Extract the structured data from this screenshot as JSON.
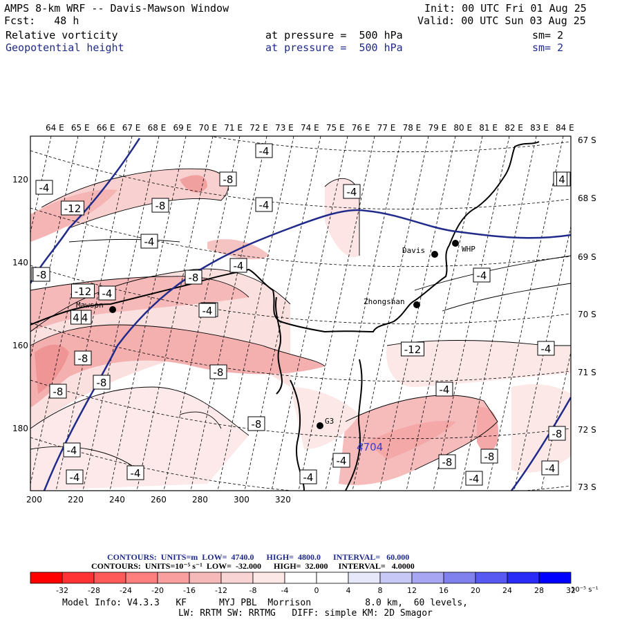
{
  "header": {
    "title": "AMPS 8-km WRF -- Davis-Mawson Window",
    "forecast": "Fcst:   48 h",
    "init": "Init: 00 UTC Fri 01 Aug 25",
    "valid": "Valid: 00 UTC Sun 03 Aug 25",
    "field1": {
      "name": "Relative vorticity",
      "level": "at pressure =  500 hPa",
      "sm": "sm= 2"
    },
    "field2": {
      "name": "Geopotential height",
      "level": "at pressure =  500 hPa",
      "sm": "sm= 2"
    }
  },
  "map": {
    "top_lon_labels": [
      "64 E",
      "65 E",
      "66 E",
      "67 E",
      "68 E",
      "69 E",
      "70 E",
      "71 E",
      "72 E",
      "73 E",
      "74 E",
      "75 E",
      "76 E",
      "77 E",
      "78 E",
      "79 E",
      "80 E",
      "81 E",
      "82 E",
      "83 E",
      "84 E"
    ],
    "right_lat_labels": [
      "67 S",
      "68 S",
      "69 S",
      "70 S",
      "71 S",
      "72 S",
      "73 S"
    ],
    "bottom_x_ticks": [
      "200",
      "220",
      "240",
      "260",
      "280",
      "300",
      "320"
    ],
    "left_y_ticks": [
      "120",
      "140",
      "160",
      "180"
    ],
    "stations": [
      "Davis",
      "WHP",
      "Zhongshan",
      "Mawson",
      "G3"
    ],
    "height_label": "4704",
    "vort_labels": [
      "-4",
      "-8",
      "-12",
      "4",
      "-4",
      "-8",
      "-4",
      "-8",
      "-4",
      "-8",
      "-12",
      "-4",
      "-4",
      "-4",
      "-4",
      "-8",
      "-8",
      "-8",
      "-8",
      "-12",
      "-8",
      "-4",
      "-4",
      "-8",
      "-4",
      "-4",
      "-8",
      "-4",
      "-8",
      "-4",
      "-4",
      "-4",
      "-4",
      "-4",
      "-8",
      "-4",
      "-4",
      "4",
      "-4",
      "-4",
      "-4",
      "4"
    ]
  },
  "footer": {
    "line1": "CONTOURS:  UNITS=m  LOW=  4740.0      HIGH=  4800.0      INTERVAL=   60.000",
    "line2": "CONTOURS:  UNITS=10⁻⁵ s⁻¹  LOW=  -32.000      HIGH=  32.000     INTERVAL=   4.0000",
    "colorbar_labels": [
      "-32",
      "-28",
      "-24",
      "-20",
      "-16",
      "-12",
      "-8",
      "-4",
      "0",
      "4",
      "8",
      "12",
      "16",
      "20",
      "24",
      "28",
      "32"
    ],
    "colorbar_unit": "10⁻⁵ s⁻¹",
    "colorbar_colors": [
      "#ff0000",
      "#ff3333",
      "#ff5a5a",
      "#ff7f7f",
      "#f99f9f",
      "#f6b9b9",
      "#f9d4d4",
      "#fde8e8",
      "#ffffff",
      "#ffffff",
      "#e8e8fb",
      "#c8c8f7",
      "#a6a6f2",
      "#8080ee",
      "#5858f3",
      "#2b2bf7",
      "#0000ff"
    ],
    "model_info1": "Model Info: V4.3.3   KF      MYJ PBL  Morrison          8.0 km,  60 levels,",
    "model_info2": "LW: RRTM SW: RRTMG   DIFF: simple KM: 2D Smagor"
  }
}
